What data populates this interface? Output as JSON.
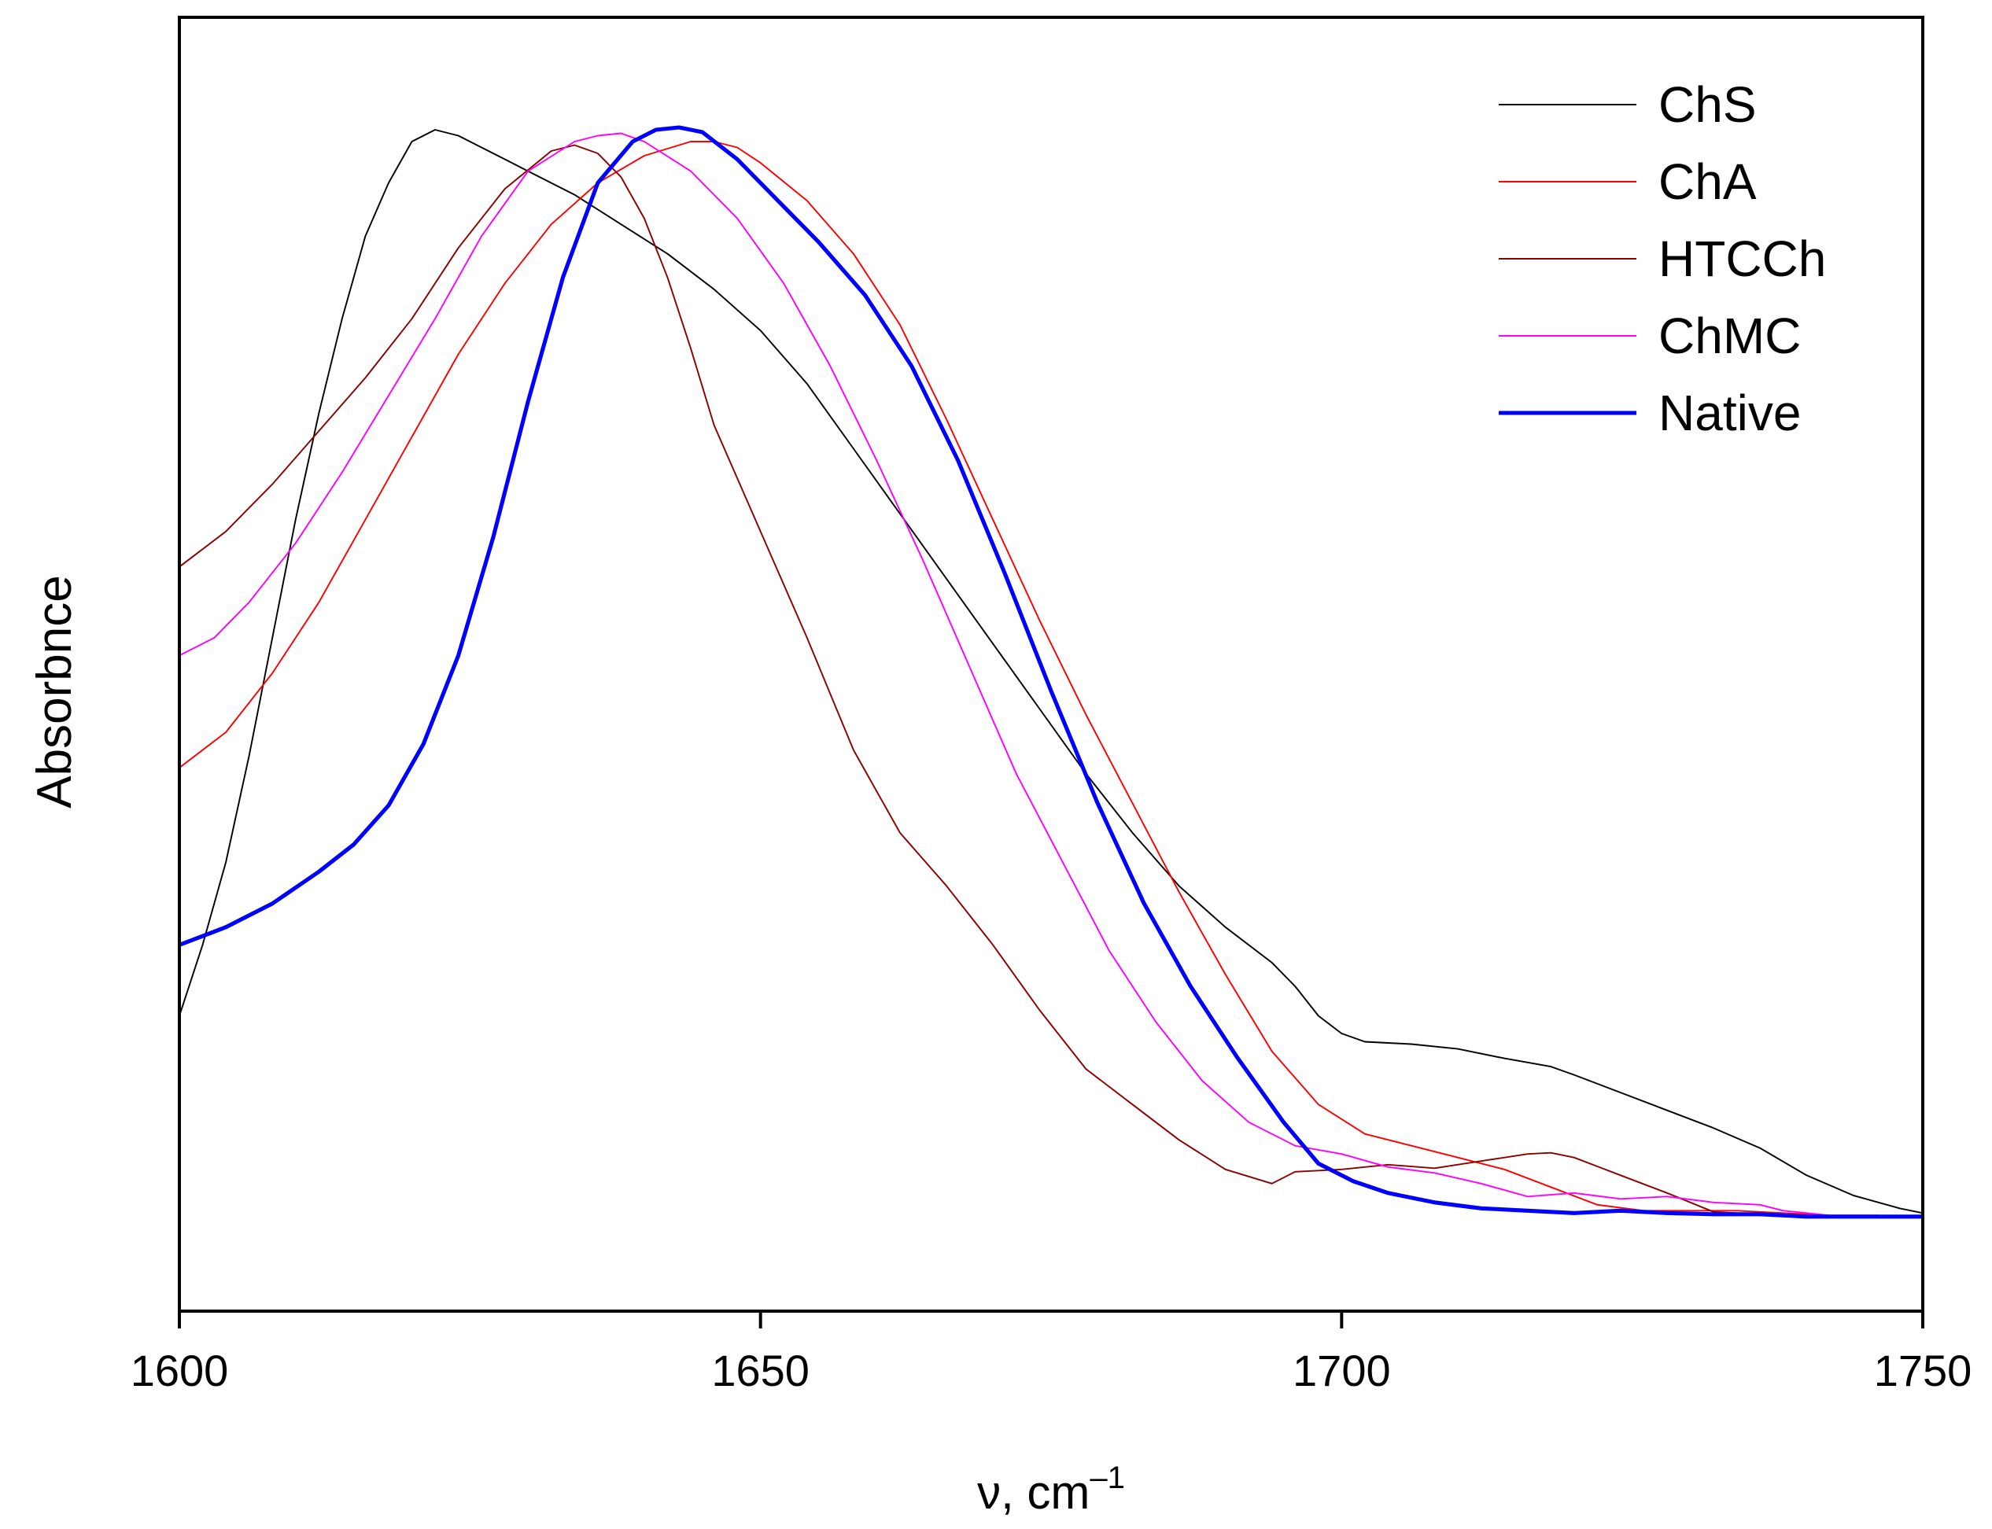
{
  "chart_data": {
    "type": "line",
    "title": "",
    "xlabel": "ν, cm",
    "xlabel_superscript": "–1",
    "ylabel": "Absorbnce",
    "xlim": [
      1600,
      1750
    ],
    "ylim": [
      0,
      1
    ],
    "xticks": [
      1600,
      1650,
      1700,
      1750
    ],
    "xtick_labels": [
      "1600",
      "1650",
      "1700",
      "1750"
    ],
    "yticks": [],
    "grid": false,
    "legend_position": "top-right",
    "series": [
      {
        "name": "ChS",
        "color": "#000000",
        "width": 1.2,
        "points": [
          [
            1600,
            0.25
          ],
          [
            1602,
            0.31
          ],
          [
            1604,
            0.38
          ],
          [
            1606,
            0.47
          ],
          [
            1608,
            0.57
          ],
          [
            1610,
            0.67
          ],
          [
            1612,
            0.76
          ],
          [
            1614,
            0.84
          ],
          [
            1616,
            0.91
          ],
          [
            1618,
            0.955
          ],
          [
            1620,
            0.99
          ],
          [
            1622,
            1.0
          ],
          [
            1624,
            0.995
          ],
          [
            1626,
            0.985
          ],
          [
            1628,
            0.975
          ],
          [
            1630,
            0.965
          ],
          [
            1634,
            0.945
          ],
          [
            1638,
            0.92
          ],
          [
            1642,
            0.895
          ],
          [
            1646,
            0.865
          ],
          [
            1650,
            0.83
          ],
          [
            1654,
            0.785
          ],
          [
            1658,
            0.73
          ],
          [
            1662,
            0.675
          ],
          [
            1666,
            0.62
          ],
          [
            1670,
            0.565
          ],
          [
            1674,
            0.51
          ],
          [
            1678,
            0.455
          ],
          [
            1682,
            0.405
          ],
          [
            1686,
            0.36
          ],
          [
            1690,
            0.325
          ],
          [
            1694,
            0.295
          ],
          [
            1696,
            0.275
          ],
          [
            1698,
            0.25
          ],
          [
            1700,
            0.235
          ],
          [
            1702,
            0.228
          ],
          [
            1706,
            0.226
          ],
          [
            1710,
            0.222
          ],
          [
            1714,
            0.214
          ],
          [
            1718,
            0.207
          ],
          [
            1720,
            0.2
          ],
          [
            1724,
            0.185
          ],
          [
            1728,
            0.17
          ],
          [
            1732,
            0.155
          ],
          [
            1736,
            0.138
          ],
          [
            1740,
            0.115
          ],
          [
            1744,
            0.098
          ],
          [
            1748,
            0.087
          ],
          [
            1750,
            0.083
          ]
        ]
      },
      {
        "name": "ChA",
        "color": "#ff0000",
        "width": 1.2,
        "points": [
          [
            1600,
            0.46
          ],
          [
            1604,
            0.49
          ],
          [
            1608,
            0.54
          ],
          [
            1612,
            0.6
          ],
          [
            1616,
            0.67
          ],
          [
            1620,
            0.74
          ],
          [
            1624,
            0.81
          ],
          [
            1628,
            0.87
          ],
          [
            1632,
            0.92
          ],
          [
            1636,
            0.955
          ],
          [
            1640,
            0.978
          ],
          [
            1644,
            0.99
          ],
          [
            1646,
            0.99
          ],
          [
            1648,
            0.985
          ],
          [
            1650,
            0.972
          ],
          [
            1654,
            0.94
          ],
          [
            1658,
            0.895
          ],
          [
            1662,
            0.835
          ],
          [
            1666,
            0.755
          ],
          [
            1670,
            0.67
          ],
          [
            1674,
            0.585
          ],
          [
            1678,
            0.505
          ],
          [
            1682,
            0.43
          ],
          [
            1686,
            0.355
          ],
          [
            1690,
            0.285
          ],
          [
            1694,
            0.22
          ],
          [
            1698,
            0.175
          ],
          [
            1702,
            0.15
          ],
          [
            1706,
            0.14
          ],
          [
            1710,
            0.13
          ],
          [
            1714,
            0.12
          ],
          [
            1718,
            0.105
          ],
          [
            1722,
            0.09
          ],
          [
            1726,
            0.085
          ],
          [
            1730,
            0.085
          ],
          [
            1734,
            0.085
          ],
          [
            1738,
            0.083
          ],
          [
            1742,
            0.081
          ],
          [
            1746,
            0.081
          ],
          [
            1750,
            0.08
          ]
        ]
      },
      {
        "name": "HTCCh",
        "color": "#8b0000",
        "width": 1.2,
        "points": [
          [
            1600,
            0.63
          ],
          [
            1604,
            0.66
          ],
          [
            1608,
            0.7
          ],
          [
            1612,
            0.745
          ],
          [
            1616,
            0.79
          ],
          [
            1620,
            0.84
          ],
          [
            1624,
            0.9
          ],
          [
            1628,
            0.95
          ],
          [
            1632,
            0.982
          ],
          [
            1634,
            0.987
          ],
          [
            1636,
            0.98
          ],
          [
            1638,
            0.96
          ],
          [
            1640,
            0.925
          ],
          [
            1642,
            0.875
          ],
          [
            1644,
            0.815
          ],
          [
            1646,
            0.75
          ],
          [
            1650,
            0.66
          ],
          [
            1654,
            0.57
          ],
          [
            1658,
            0.475
          ],
          [
            1662,
            0.405
          ],
          [
            1666,
            0.36
          ],
          [
            1670,
            0.31
          ],
          [
            1674,
            0.255
          ],
          [
            1678,
            0.205
          ],
          [
            1682,
            0.175
          ],
          [
            1686,
            0.145
          ],
          [
            1690,
            0.12
          ],
          [
            1694,
            0.108
          ],
          [
            1696,
            0.118
          ],
          [
            1700,
            0.12
          ],
          [
            1704,
            0.124
          ],
          [
            1708,
            0.121
          ],
          [
            1712,
            0.127
          ],
          [
            1716,
            0.133
          ],
          [
            1718,
            0.134
          ],
          [
            1720,
            0.13
          ],
          [
            1724,
            0.115
          ],
          [
            1728,
            0.1
          ],
          [
            1732,
            0.084
          ],
          [
            1736,
            0.082
          ],
          [
            1740,
            0.08
          ],
          [
            1744,
            0.08
          ],
          [
            1748,
            0.08
          ],
          [
            1750,
            0.08
          ]
        ]
      },
      {
        "name": "ChMC",
        "color": "#ff00ff",
        "width": 1.2,
        "points": [
          [
            1600,
            0.555
          ],
          [
            1603,
            0.57
          ],
          [
            1606,
            0.6
          ],
          [
            1610,
            0.65
          ],
          [
            1614,
            0.71
          ],
          [
            1618,
            0.775
          ],
          [
            1622,
            0.84
          ],
          [
            1626,
            0.91
          ],
          [
            1630,
            0.965
          ],
          [
            1634,
            0.99
          ],
          [
            1636,
            0.995
          ],
          [
            1638,
            0.997
          ],
          [
            1640,
            0.99
          ],
          [
            1644,
            0.965
          ],
          [
            1648,
            0.925
          ],
          [
            1652,
            0.87
          ],
          [
            1656,
            0.8
          ],
          [
            1660,
            0.72
          ],
          [
            1664,
            0.635
          ],
          [
            1668,
            0.545
          ],
          [
            1672,
            0.455
          ],
          [
            1676,
            0.38
          ],
          [
            1680,
            0.305
          ],
          [
            1684,
            0.245
          ],
          [
            1688,
            0.195
          ],
          [
            1692,
            0.16
          ],
          [
            1696,
            0.14
          ],
          [
            1700,
            0.133
          ],
          [
            1704,
            0.122
          ],
          [
            1708,
            0.117
          ],
          [
            1712,
            0.108
          ],
          [
            1716,
            0.097
          ],
          [
            1720,
            0.1
          ],
          [
            1724,
            0.095
          ],
          [
            1728,
            0.097
          ],
          [
            1732,
            0.092
          ],
          [
            1736,
            0.09
          ],
          [
            1738,
            0.085
          ],
          [
            1742,
            0.081
          ],
          [
            1746,
            0.081
          ],
          [
            1750,
            0.08
          ]
        ]
      },
      {
        "name": "Native",
        "color": "#0000ff",
        "width": 3.2,
        "points": [
          [
            1600,
            0.31
          ],
          [
            1604,
            0.325
          ],
          [
            1608,
            0.345
          ],
          [
            1612,
            0.372
          ],
          [
            1615,
            0.395
          ],
          [
            1618,
            0.428
          ],
          [
            1621,
            0.48
          ],
          [
            1624,
            0.555
          ],
          [
            1627,
            0.655
          ],
          [
            1630,
            0.77
          ],
          [
            1633,
            0.875
          ],
          [
            1636,
            0.955
          ],
          [
            1639,
            0.99
          ],
          [
            1641,
            1.0
          ],
          [
            1643,
            1.002
          ],
          [
            1645,
            0.998
          ],
          [
            1648,
            0.975
          ],
          [
            1651,
            0.945
          ],
          [
            1655,
            0.905
          ],
          [
            1659,
            0.86
          ],
          [
            1663,
            0.8
          ],
          [
            1667,
            0.72
          ],
          [
            1671,
            0.625
          ],
          [
            1675,
            0.525
          ],
          [
            1679,
            0.43
          ],
          [
            1683,
            0.345
          ],
          [
            1687,
            0.275
          ],
          [
            1691,
            0.215
          ],
          [
            1695,
            0.16
          ],
          [
            1698,
            0.125
          ],
          [
            1701,
            0.11
          ],
          [
            1704,
            0.1
          ],
          [
            1708,
            0.092
          ],
          [
            1712,
            0.087
          ],
          [
            1716,
            0.085
          ],
          [
            1720,
            0.083
          ],
          [
            1724,
            0.085
          ],
          [
            1728,
            0.083
          ],
          [
            1732,
            0.082
          ],
          [
            1736,
            0.082
          ],
          [
            1740,
            0.08
          ],
          [
            1744,
            0.08
          ],
          [
            1748,
            0.08
          ],
          [
            1750,
            0.08
          ]
        ]
      }
    ]
  }
}
